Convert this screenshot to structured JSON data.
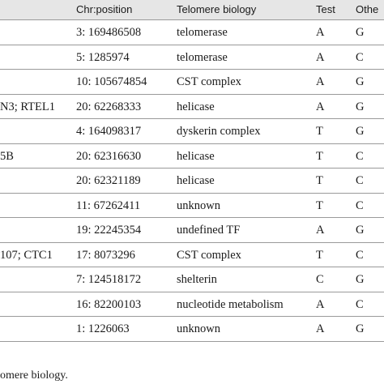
{
  "header": {
    "col1": "Chr:position",
    "col2": "Telomere biology",
    "col3": "Test",
    "col4": "Othe"
  },
  "rows": [
    {
      "gene": "",
      "pos": "3: 169486508",
      "bio": "telomerase",
      "test": "A",
      "other": "G"
    },
    {
      "gene": "",
      "pos": "5: 1285974",
      "bio": "telomerase",
      "test": "A",
      "other": "C"
    },
    {
      "gene": "",
      "pos": "10: 105674854",
      "bio": "CST complex",
      "test": "A",
      "other": "G"
    },
    {
      "gene": "N3; RTEL1",
      "pos": "20: 62268333",
      "bio": "helicase",
      "test": "A",
      "other": "G"
    },
    {
      "gene": "",
      "pos": "4: 164098317",
      "bio": "dyskerin complex",
      "test": "T",
      "other": "G"
    },
    {
      "gene": "5B",
      "pos": "20: 62316630",
      "bio": "helicase",
      "test": "T",
      "other": "C"
    },
    {
      "gene": "",
      "pos": "20: 62321189",
      "bio": "helicase",
      "test": "T",
      "other": "C"
    },
    {
      "gene": "",
      "pos": "11: 67262411",
      "bio": "unknown",
      "test": "T",
      "other": "C"
    },
    {
      "gene": "",
      "pos": "19: 22245354",
      "bio": "undefined TF",
      "test": "A",
      "other": "G"
    },
    {
      "gene": "107; CTC1",
      "pos": "17: 8073296",
      "bio": "CST complex",
      "test": "T",
      "other": "C"
    },
    {
      "gene": "",
      "pos": "7: 124518172",
      "bio": "shelterin",
      "test": "C",
      "other": "G"
    },
    {
      "gene": "",
      "pos": "16: 82200103",
      "bio": "nucleotide metabolism",
      "test": "A",
      "other": "C"
    },
    {
      "gene": "",
      "pos": "1: 1226063",
      "bio": "unknown",
      "test": "A",
      "other": "G"
    }
  ],
  "footnote": "omere biology."
}
